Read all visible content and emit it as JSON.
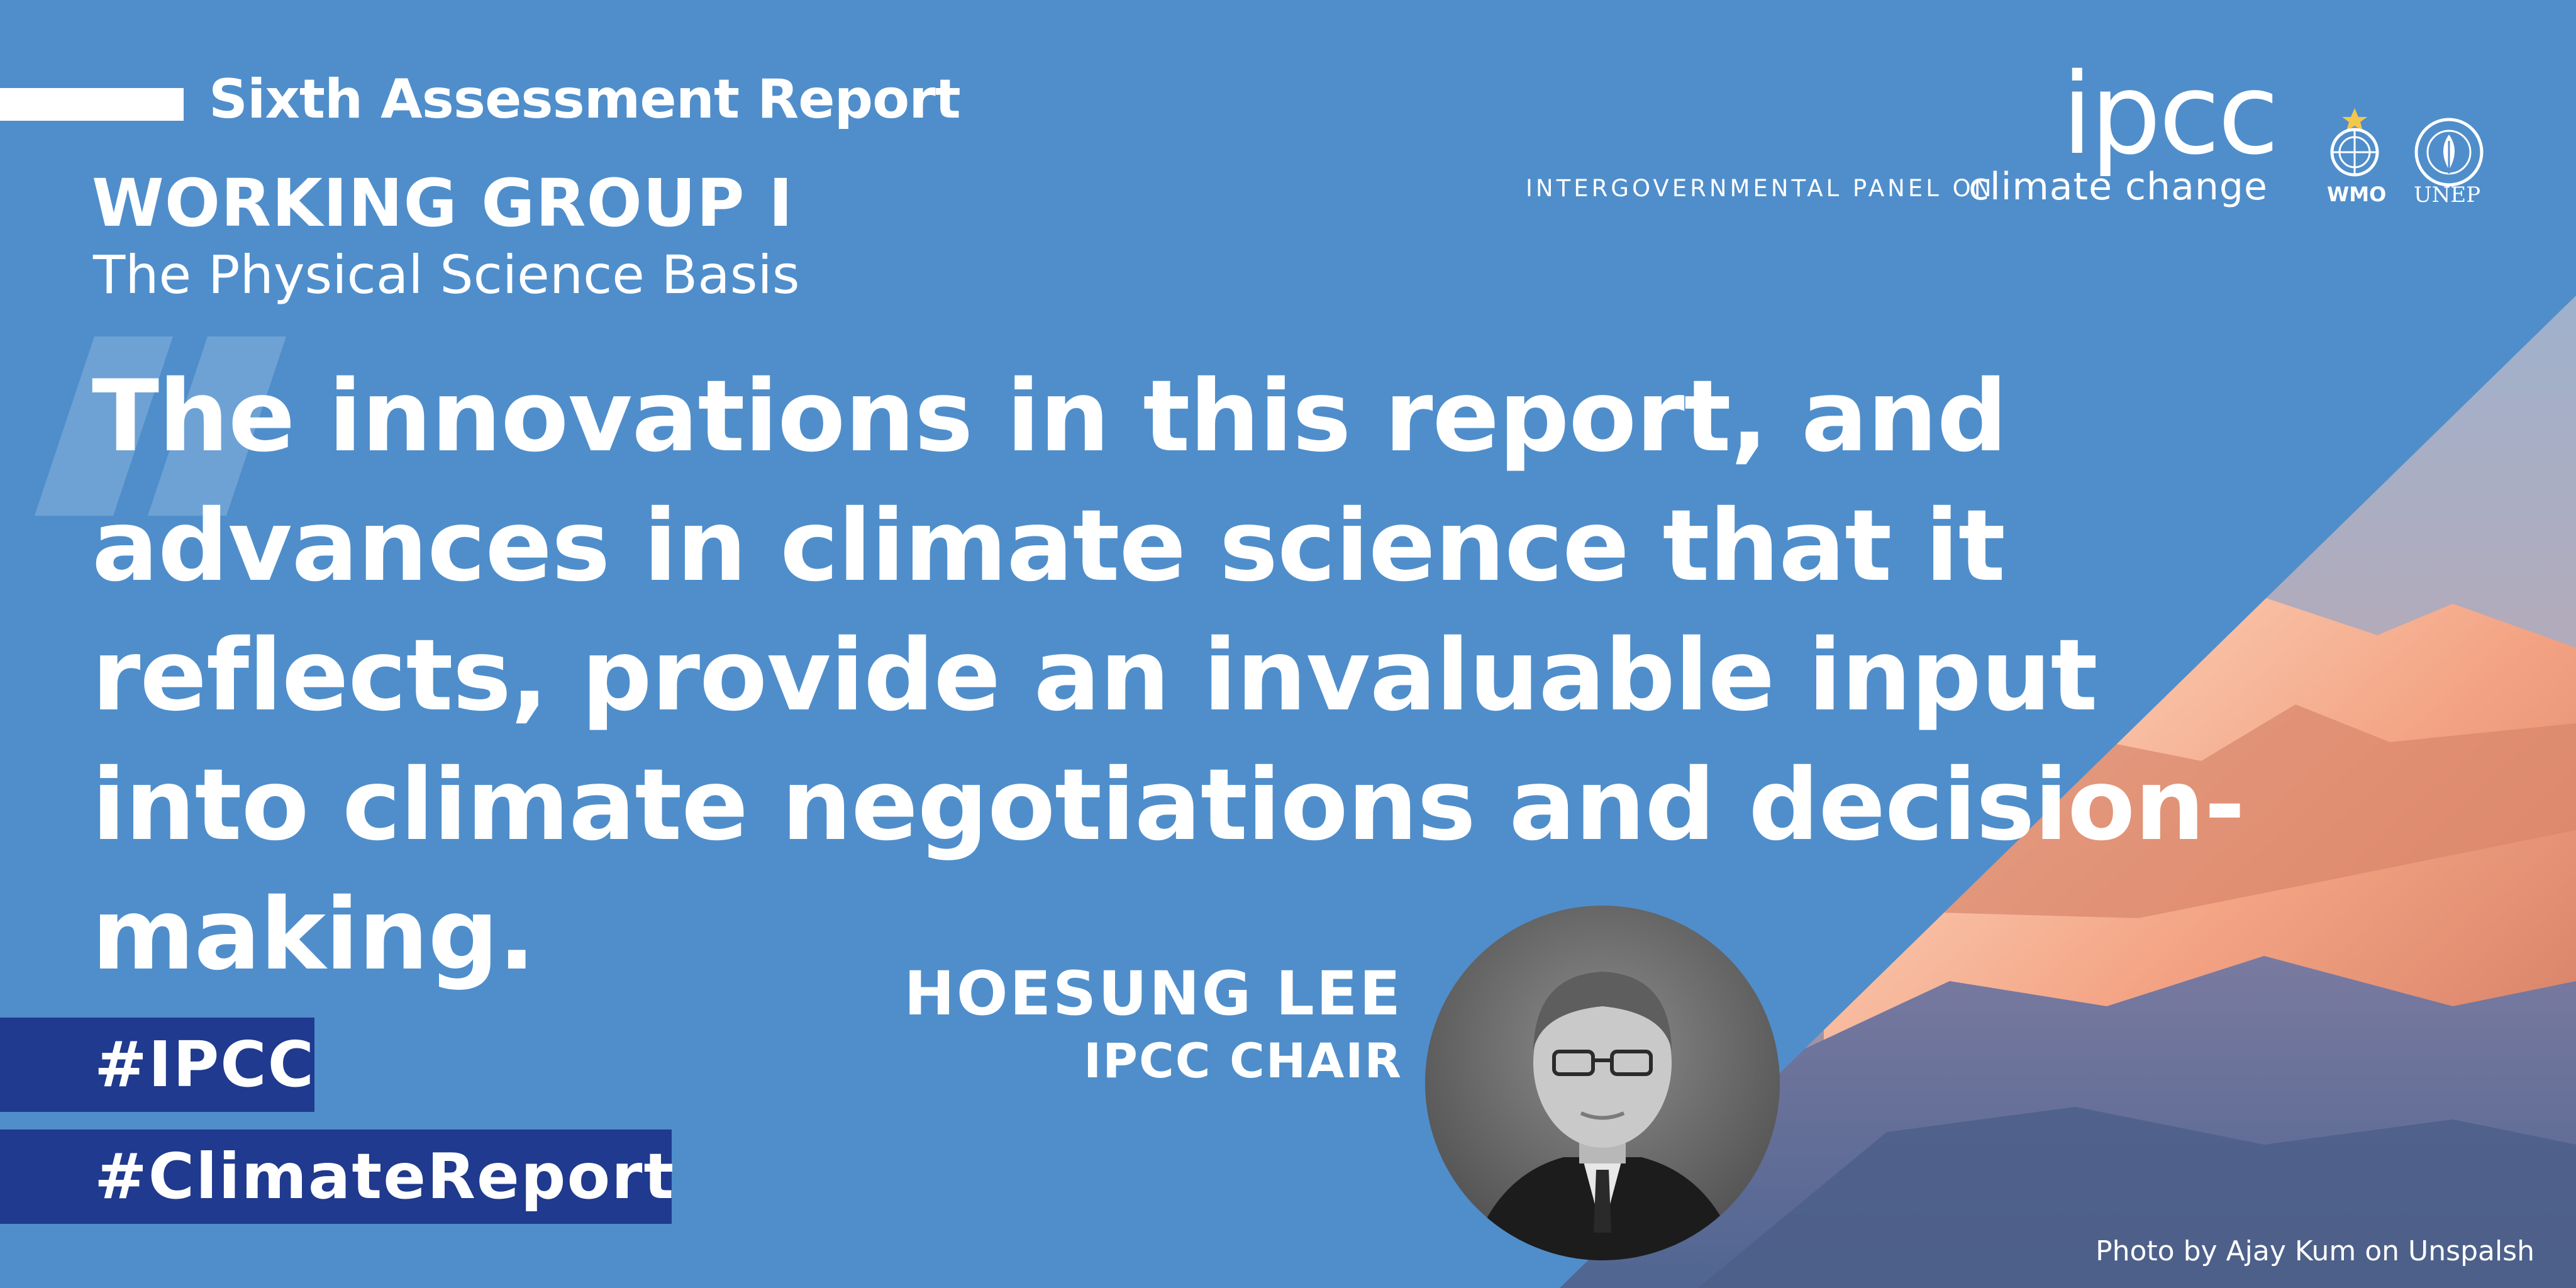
{
  "report": {
    "title": "Sixth Assessment Report",
    "working_group": "WORKING GROUP I",
    "subtitle": "The Physical Science Basis"
  },
  "quote": {
    "text": "The innovations in this report, and advances in climate science that it reflects, provide an invaluable input into climate negotiations and decision-making.",
    "mark_icon": "quotation-mark-icon"
  },
  "speaker": {
    "name": "HOESUNG LEE",
    "role": "IPCC CHAIR"
  },
  "hashtags": [
    "#IPCC",
    "#ClimateReport"
  ],
  "branding": {
    "logo": "ipcc",
    "org_prefix": "INTERGOVERNMENTAL PANEL ON",
    "org_suffix": "climate change",
    "partners": [
      "WMO",
      "UNEP"
    ]
  },
  "photo_credit": "Photo by Ajay Kum on Unspalsh",
  "colors": {
    "background": "#4f8ecb",
    "hashtag_box": "#1f3a8e",
    "text": "#ffffff",
    "mountain_light": "#f0a88a",
    "mountain_dark": "#5b6f96"
  }
}
